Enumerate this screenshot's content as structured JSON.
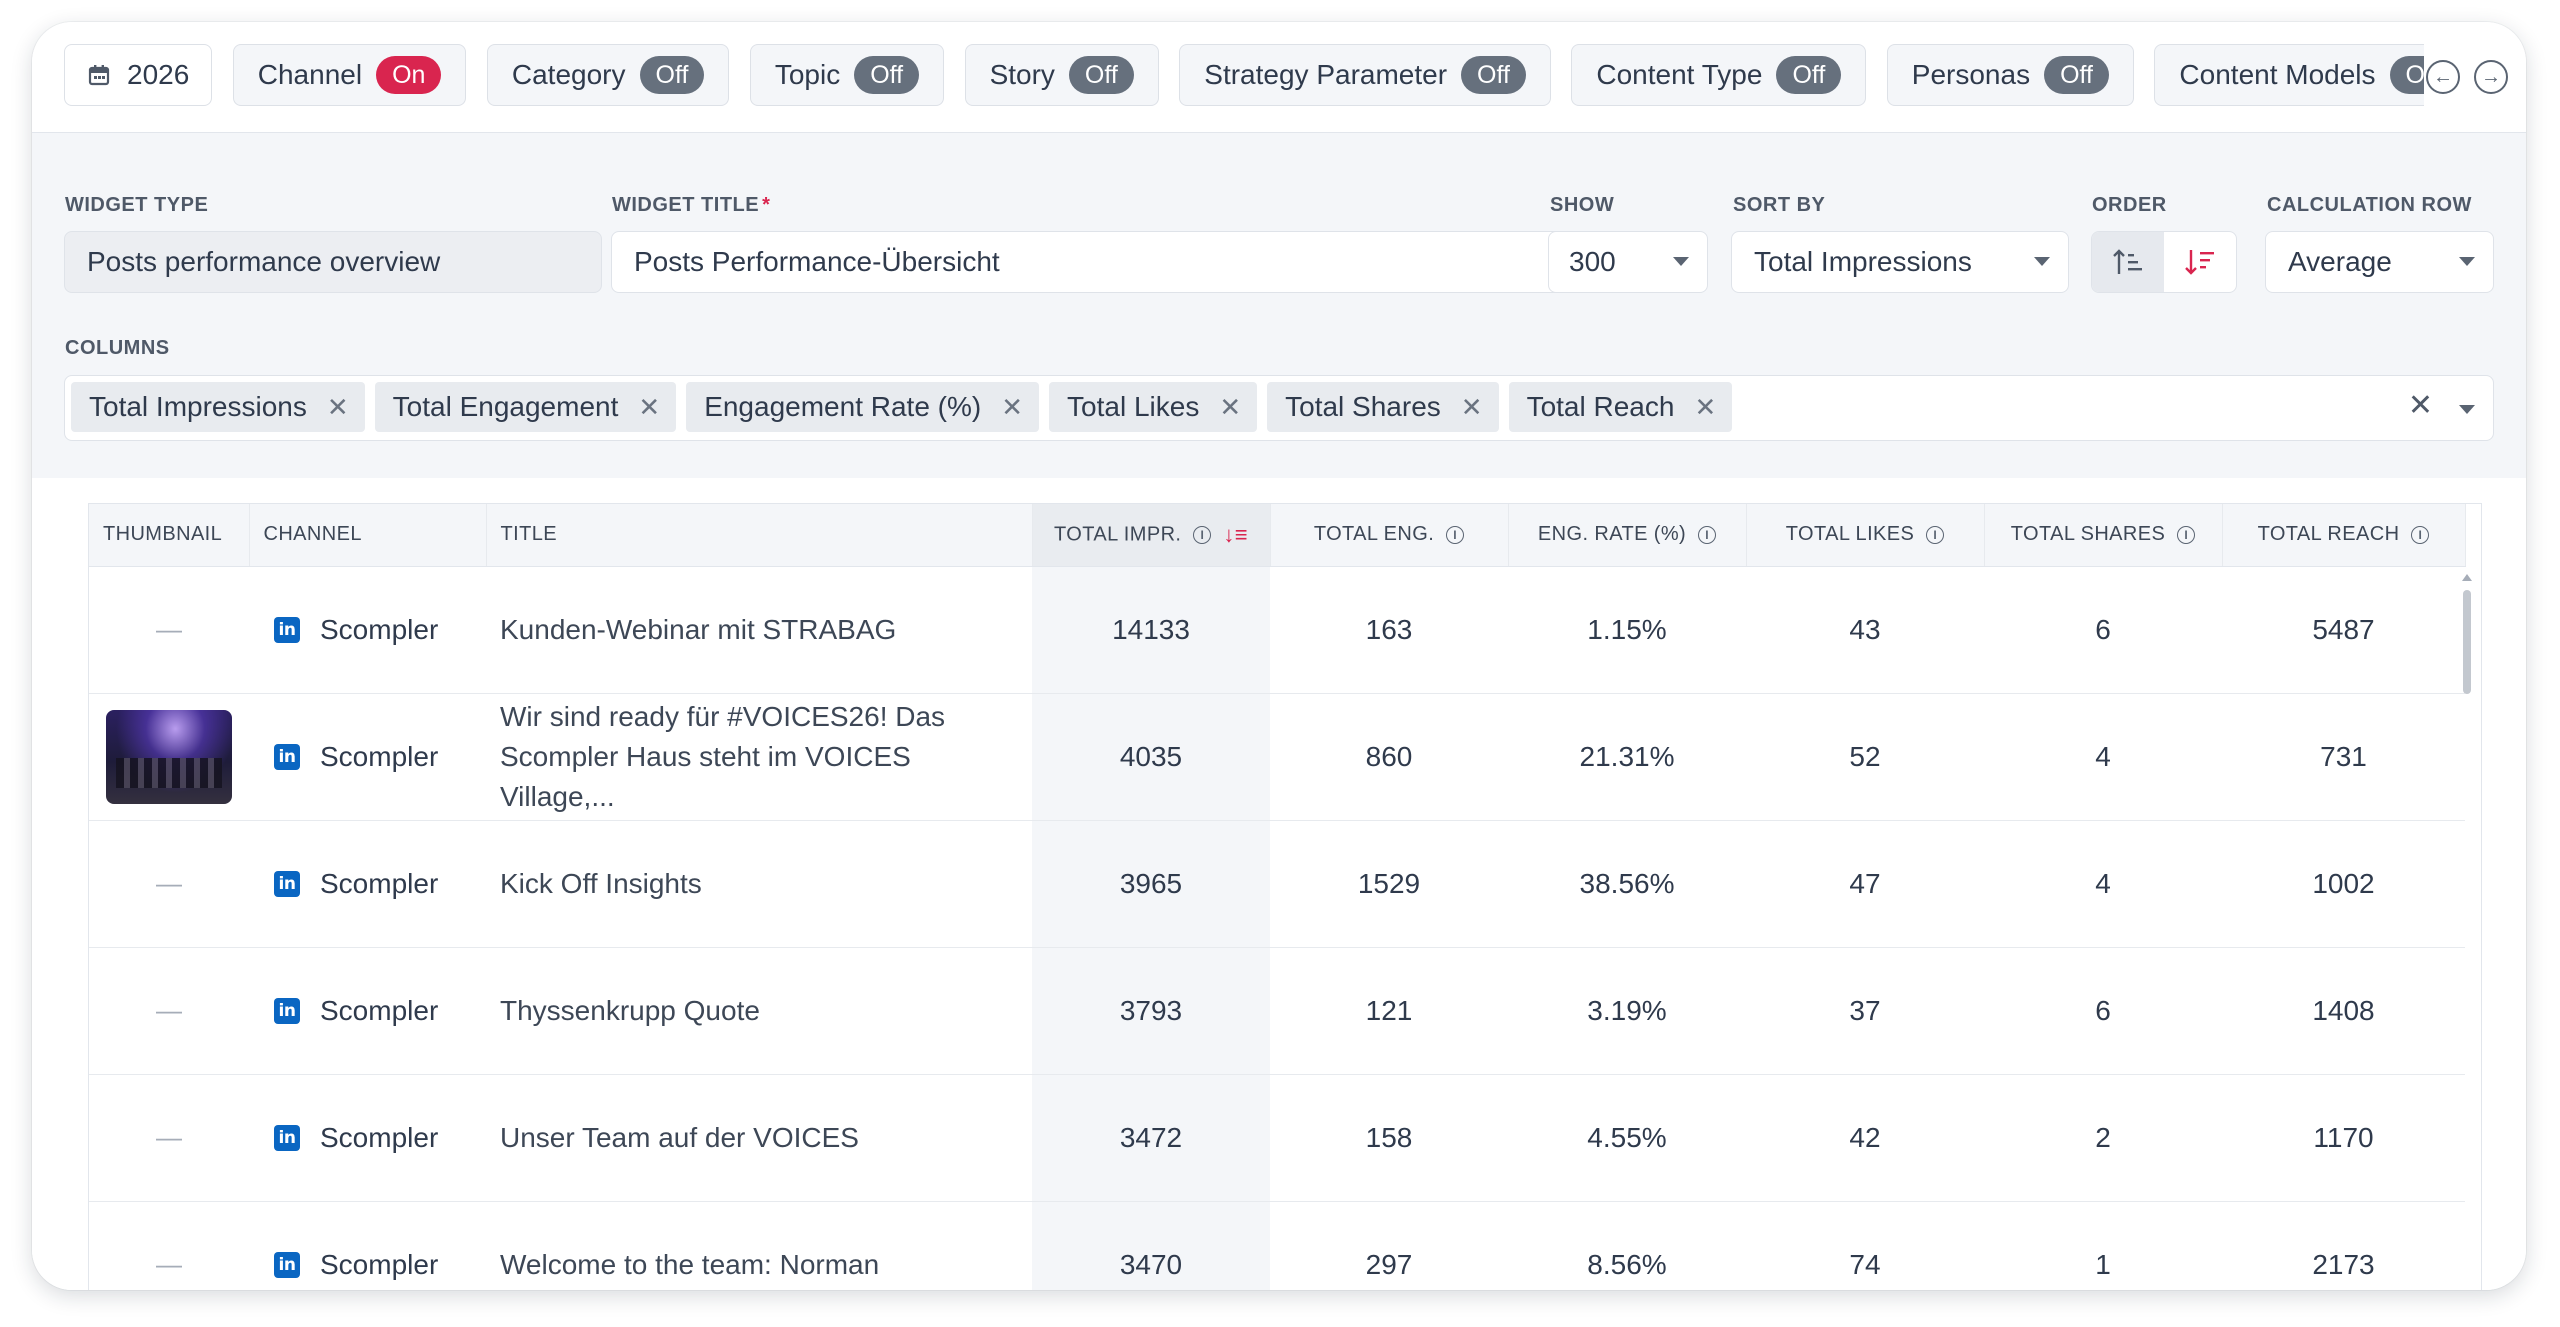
{
  "filters": {
    "year": "2026",
    "chips": [
      {
        "label": "Channel",
        "state": "On"
      },
      {
        "label": "Category",
        "state": "Off"
      },
      {
        "label": "Topic",
        "state": "Off"
      },
      {
        "label": "Story",
        "state": "Off"
      },
      {
        "label": "Strategy Parameter",
        "state": "Off"
      },
      {
        "label": "Content Type",
        "state": "Off"
      },
      {
        "label": "Personas",
        "state": "Off"
      },
      {
        "label": "Content Models",
        "state": "Off"
      }
    ]
  },
  "config": {
    "widget_type": {
      "label": "Widget Type",
      "value": "Posts performance overview"
    },
    "widget_title": {
      "label": "Widget Title",
      "required": "*",
      "value": "Posts Performance-Übersicht"
    },
    "show": {
      "label": "Show",
      "value": "300"
    },
    "sort_by": {
      "label": "Sort By",
      "value": "Total Impressions"
    },
    "order": {
      "label": "Order",
      "active": "descending"
    },
    "calculation_row": {
      "label": "Calculation Row",
      "value": "Average"
    },
    "columns": {
      "label": "Columns",
      "tags": [
        "Total Impressions",
        "Total Engagement",
        "Engagement Rate (%)",
        "Total Likes",
        "Total Shares",
        "Total Reach"
      ]
    }
  },
  "table": {
    "headers": {
      "thumbnail": "Thumbnail",
      "channel": "Channel",
      "title": "Title",
      "impressions": "Total Impr.",
      "engagement": "Total Eng.",
      "eng_rate": "Eng. Rate (%)",
      "likes": "Total Likes",
      "shares": "Total Shares",
      "reach": "Total Reach"
    },
    "sorted_column": "impressions",
    "rows": [
      {
        "thumb": "—",
        "channel": "Scompler",
        "title": "Kunden-Webinar mit STRABAG",
        "impressions": "14133",
        "engagement": "163",
        "eng_rate": "1.15%",
        "likes": "43",
        "shares": "6",
        "reach": "5487"
      },
      {
        "thumb": "image",
        "channel": "Scompler",
        "title": "Wir sind ready für #VOICES26! Das Scompler Haus steht im VOICES Village,...",
        "impressions": "4035",
        "engagement": "860",
        "eng_rate": "21.31%",
        "likes": "52",
        "shares": "4",
        "reach": "731"
      },
      {
        "thumb": "—",
        "channel": "Scompler",
        "title": "Kick Off Insights",
        "impressions": "3965",
        "engagement": "1529",
        "eng_rate": "38.56%",
        "likes": "47",
        "shares": "4",
        "reach": "1002"
      },
      {
        "thumb": "—",
        "channel": "Scompler",
        "title": "Thyssenkrupp Quote",
        "impressions": "3793",
        "engagement": "121",
        "eng_rate": "3.19%",
        "likes": "37",
        "shares": "6",
        "reach": "1408"
      },
      {
        "thumb": "—",
        "channel": "Scompler",
        "title": "Unser Team auf der VOICES",
        "impressions": "3472",
        "engagement": "158",
        "eng_rate": "4.55%",
        "likes": "42",
        "shares": "2",
        "reach": "1170"
      },
      {
        "thumb": "—",
        "channel": "Scompler",
        "title": "Welcome to the team: Norman",
        "impressions": "3470",
        "engagement": "297",
        "eng_rate": "8.56%",
        "likes": "74",
        "shares": "1",
        "reach": "2173"
      }
    ]
  },
  "colors": {
    "accent": "#d9254f",
    "linkedin": "#0a66c2",
    "pill_off": "#66707d"
  },
  "icons": {
    "calendar": "calendar-icon",
    "prev": "arrow-left-circle-icon",
    "next": "arrow-right-circle-icon",
    "linkedin": "linkedin-icon",
    "info": "info-icon",
    "sort": "sort-desc-icon"
  }
}
